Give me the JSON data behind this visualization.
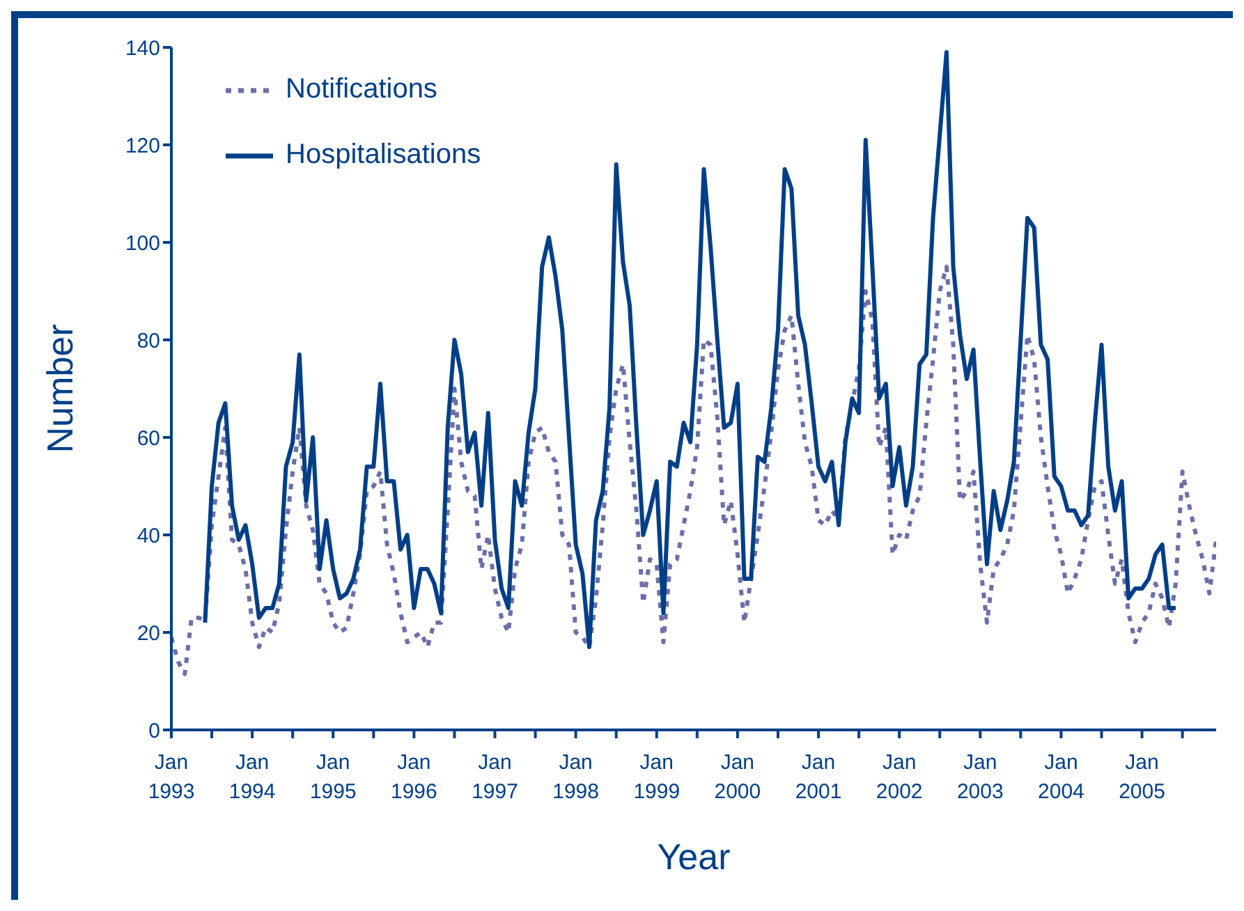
{
  "chart_data": {
    "type": "line",
    "xlabel": "Year",
    "ylabel": "Number",
    "x": [
      "1993-01",
      "1993-02",
      "1993-03",
      "1993-04",
      "1993-05",
      "1993-06",
      "1993-07",
      "1993-08",
      "1993-09",
      "1993-10",
      "1993-11",
      "1993-12",
      "1994-01",
      "1994-02",
      "1994-03",
      "1994-04",
      "1994-05",
      "1994-06",
      "1994-07",
      "1994-08",
      "1994-09",
      "1994-10",
      "1994-11",
      "1994-12",
      "1995-01",
      "1995-02",
      "1995-03",
      "1995-04",
      "1995-05",
      "1995-06",
      "1995-07",
      "1995-08",
      "1995-09",
      "1995-10",
      "1995-11",
      "1995-12",
      "1996-01",
      "1996-02",
      "1996-03",
      "1996-04",
      "1996-05",
      "1996-06",
      "1996-07",
      "1996-08",
      "1996-09",
      "1996-10",
      "1996-11",
      "1996-12",
      "1997-01",
      "1997-02",
      "1997-03",
      "1997-04",
      "1997-05",
      "1997-06",
      "1997-07",
      "1997-08",
      "1997-09",
      "1997-10",
      "1997-11",
      "1997-12",
      "1998-01",
      "1998-02",
      "1998-03",
      "1998-04",
      "1998-05",
      "1998-06",
      "1998-07",
      "1998-08",
      "1998-09",
      "1998-10",
      "1998-11",
      "1998-12",
      "1999-01",
      "1999-02",
      "1999-03",
      "1999-04",
      "1999-05",
      "1999-06",
      "1999-07",
      "1999-08",
      "1999-09",
      "1999-10",
      "1999-11",
      "1999-12",
      "2000-01",
      "2000-02",
      "2000-03",
      "2000-04",
      "2000-05",
      "2000-06",
      "2000-07",
      "2000-08",
      "2000-09",
      "2000-10",
      "2000-11",
      "2000-12",
      "2001-01",
      "2001-02",
      "2001-03",
      "2001-04",
      "2001-05",
      "2001-06",
      "2001-07",
      "2001-08",
      "2001-09",
      "2001-10",
      "2001-11",
      "2001-12",
      "2002-01",
      "2002-02",
      "2002-03",
      "2002-04",
      "2002-05",
      "2002-06",
      "2002-07",
      "2002-08",
      "2002-09",
      "2002-10",
      "2002-11",
      "2002-12",
      "2003-01",
      "2003-02",
      "2003-03",
      "2003-04",
      "2003-05",
      "2003-06",
      "2003-07",
      "2003-08",
      "2003-09",
      "2003-10",
      "2003-11",
      "2003-12",
      "2004-01",
      "2004-02",
      "2004-03",
      "2004-04",
      "2004-05",
      "2004-06",
      "2004-07",
      "2004-08",
      "2004-09",
      "2004-10",
      "2004-11",
      "2004-12",
      "2005-01",
      "2005-02",
      "2005-03",
      "2005-04",
      "2005-05",
      "2005-06",
      "2005-07",
      "2005-08",
      "2005-09",
      "2005-10",
      "2005-11",
      "2005-12"
    ],
    "series": [
      {
        "name": "Notifications",
        "color": "#6b6fa8",
        "line_style": "dotted",
        "values": [
          19,
          14,
          11.5,
          23,
          23,
          22.5,
          42,
          52,
          62,
          39,
          38,
          33,
          22,
          17,
          21,
          20,
          26,
          41,
          53,
          62,
          46,
          41,
          30,
          28,
          22,
          20,
          21,
          28,
          36,
          49,
          50,
          53,
          38,
          32,
          24,
          18,
          19,
          20,
          17,
          22,
          22,
          45,
          70,
          55,
          49,
          48,
          33,
          40,
          29,
          23,
          20,
          33,
          38,
          55,
          61,
          62,
          57,
          55,
          40,
          38,
          20,
          19,
          17,
          27,
          42,
          60,
          70,
          75,
          59,
          45,
          26,
          35,
          34,
          18,
          34,
          35,
          42,
          49,
          58,
          80,
          79,
          64,
          42,
          47,
          36,
          22,
          31,
          40,
          50,
          61,
          74,
          82,
          85,
          71,
          59,
          54,
          43,
          42,
          45,
          43,
          60,
          67,
          74,
          90,
          84,
          58,
          62,
          36,
          40,
          39,
          45,
          48,
          63,
          76,
          90,
          95,
          79,
          47,
          49,
          53,
          34,
          22,
          33,
          35,
          38,
          45,
          63,
          81,
          76,
          60,
          50,
          41,
          36,
          28,
          31,
          35,
          43,
          50,
          51,
          40,
          30,
          35,
          24,
          18,
          22,
          24,
          30,
          27,
          21,
          30,
          53,
          46,
          40,
          35,
          28,
          39
        ]
      },
      {
        "name": "Hospitalisations",
        "color": "#003f87",
        "line_style": "solid",
        "values": [
          null,
          null,
          null,
          null,
          null,
          22,
          50,
          63,
          67,
          46,
          39,
          42,
          34,
          23,
          25,
          25,
          30,
          54,
          59,
          77,
          47,
          60,
          33,
          43,
          33,
          27,
          28,
          31,
          37,
          54,
          54,
          71,
          51,
          51,
          37,
          40,
          25,
          33,
          33,
          30,
          24,
          62,
          80,
          73,
          57,
          61,
          46,
          65,
          39,
          29,
          25,
          51,
          46,
          61,
          70,
          95,
          101,
          93,
          82,
          60,
          38,
          32,
          17,
          43,
          49,
          66,
          116,
          96,
          87,
          62,
          40,
          45,
          51,
          24,
          55,
          54,
          63,
          59,
          79,
          115,
          99,
          80,
          62,
          63,
          71,
          31,
          31,
          56,
          55,
          66,
          82,
          115,
          111,
          85,
          79,
          67,
          54,
          51,
          55,
          42,
          59,
          68,
          65,
          121,
          95,
          68,
          71,
          50,
          58,
          46,
          54,
          75,
          77,
          105,
          122,
          139,
          95,
          81,
          72,
          78,
          55,
          34,
          49,
          41,
          47,
          55,
          80,
          105,
          103,
          79,
          76,
          52,
          50,
          45,
          45,
          42,
          44,
          63,
          79,
          54,
          45,
          51,
          27,
          29,
          29,
          31,
          36,
          38,
          25,
          25,
          null,
          null,
          null,
          null,
          null,
          null
        ]
      }
    ],
    "xlim": [
      "1993-01",
      "2005-12"
    ],
    "xticks": [
      {
        "value": "1993-01",
        "label": "Jan 1993"
      },
      {
        "value": "1993-07",
        "label": null
      },
      {
        "value": "1994-01",
        "label": "Jan 1994"
      },
      {
        "value": "1994-07",
        "label": null
      },
      {
        "value": "1995-01",
        "label": "Jan 1995"
      },
      {
        "value": "1995-07",
        "label": null
      },
      {
        "value": "1996-01",
        "label": "Jan 1996"
      },
      {
        "value": "1996-07",
        "label": null
      },
      {
        "value": "1997-01",
        "label": "Jan 1997"
      },
      {
        "value": "1997-07",
        "label": null
      },
      {
        "value": "1998-01",
        "label": "Jan 1998"
      },
      {
        "value": "1998-07",
        "label": null
      },
      {
        "value": "1999-01",
        "label": "Jan 1999"
      },
      {
        "value": "1999-07",
        "label": null
      },
      {
        "value": "2000-01",
        "label": "Jan 2000"
      },
      {
        "value": "2000-07",
        "label": null
      },
      {
        "value": "2001-01",
        "label": "Jan 2001"
      },
      {
        "value": "2001-07",
        "label": null
      },
      {
        "value": "2002-01",
        "label": "Jan 2002"
      },
      {
        "value": "2002-07",
        "label": null
      },
      {
        "value": "2003-01",
        "label": "Jan 2003"
      },
      {
        "value": "2003-07",
        "label": null
      },
      {
        "value": "2004-01",
        "label": "Jan 2004"
      },
      {
        "value": "2004-07",
        "label": null
      },
      {
        "value": "2005-01",
        "label": "Jan 2005"
      },
      {
        "value": "2005-07",
        "label": null
      }
    ],
    "ylim": [
      0,
      140
    ],
    "yticks": [
      0,
      20,
      40,
      60,
      80,
      100,
      120,
      140
    ],
    "grid": false,
    "legend": "top left",
    "marker": "none"
  }
}
